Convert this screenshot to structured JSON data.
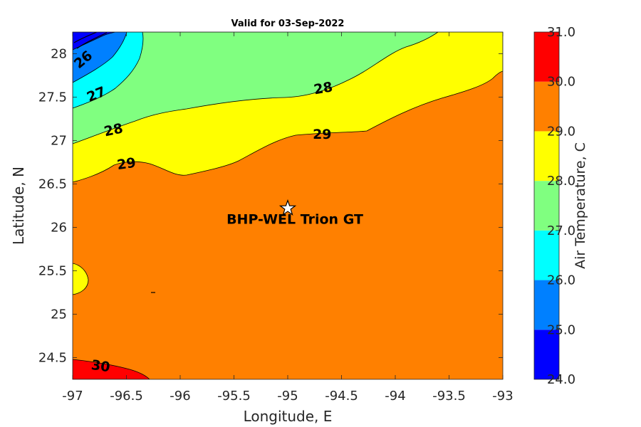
{
  "chart_data": {
    "type": "heatmap",
    "title": "Valid for 03-Sep-2022",
    "xlabel": "Longitude, E",
    "ylabel": "Latitude, N",
    "xlim": [
      -97,
      -93
    ],
    "ylim": [
      24.25,
      28.25
    ],
    "x_ticks": [
      -97,
      -96.5,
      -96,
      -95.5,
      -95,
      -94.5,
      -94,
      -93.5,
      -93
    ],
    "x_tick_labels": [
      "-97",
      "-96.5",
      "-96",
      "-95.5",
      "-95",
      "-94.5",
      "-94",
      "-93.5",
      "-93"
    ],
    "y_ticks": [
      24.5,
      25,
      25.5,
      26,
      26.5,
      27,
      27.5,
      28
    ],
    "y_tick_labels": [
      "24.5",
      "25",
      "25.5",
      "26",
      "26.5",
      "27",
      "27.5",
      "28"
    ],
    "colorbar": {
      "label": "Air Temperature, C",
      "range": [
        24,
        31
      ],
      "ticks": [
        24,
        25,
        26,
        27,
        28,
        29,
        30,
        31
      ],
      "tick_labels": [
        "24.0",
        "25.0",
        "26.0",
        "27.0",
        "28.0",
        "29.0",
        "30.0",
        "31.0"
      ],
      "colors": [
        "#0000ff",
        "#0080ff",
        "#00ffff",
        "#80ff80",
        "#ffff00",
        "#ff8000",
        "#ff0000"
      ]
    },
    "contour_labels": [
      {
        "text": "26",
        "lon": -96.9,
        "lat": 27.93,
        "angle": -40
      },
      {
        "text": "27",
        "lon": -96.78,
        "lat": 27.53,
        "angle": -22
      },
      {
        "text": "28",
        "lon": -96.62,
        "lat": 27.12,
        "angle": -12
      },
      {
        "text": "29",
        "lon": -96.5,
        "lat": 26.73,
        "angle": -8
      },
      {
        "text": "28",
        "lon": -94.67,
        "lat": 27.6,
        "angle": -10
      },
      {
        "text": "29",
        "lon": -94.68,
        "lat": 27.07,
        "angle": 0
      },
      {
        "text": "30",
        "lon": -96.74,
        "lat": 24.4,
        "angle": 8
      }
    ],
    "marker": {
      "label": "BHP-WEL Trion GT",
      "lon": -95.0,
      "lat": 26.22,
      "symbol": "star"
    }
  }
}
